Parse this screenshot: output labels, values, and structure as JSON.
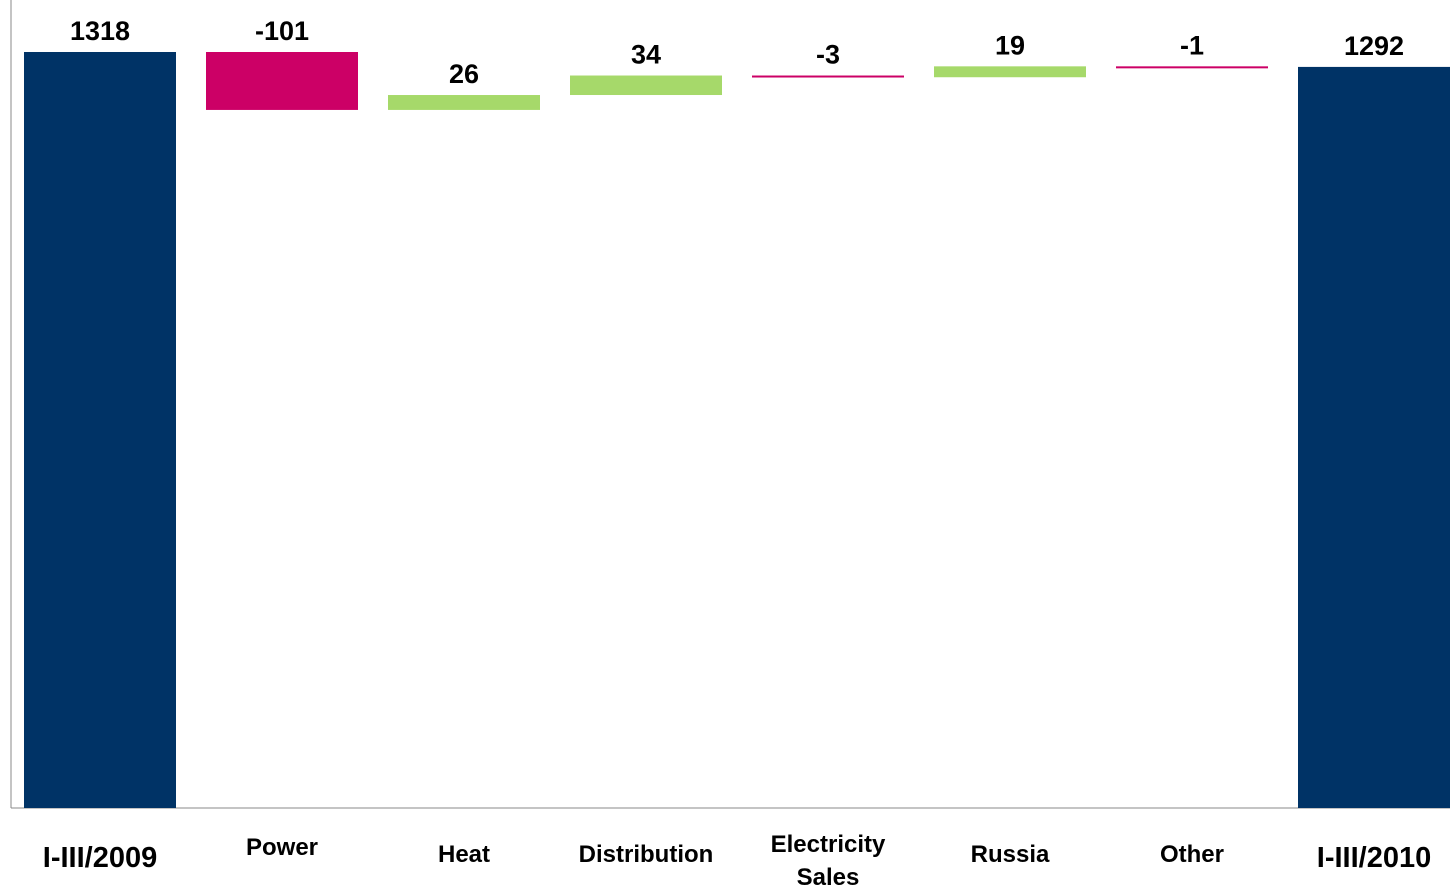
{
  "chart_data": {
    "type": "bar",
    "subtype": "waterfall",
    "title": "",
    "xlabel": "",
    "ylabel": "",
    "categories": [
      "I-III/2009",
      "Power",
      "Heat",
      "Distribution",
      "Electricity Sales",
      "Russia",
      "Other",
      "I-III/2010"
    ],
    "values": [
      1318,
      -101,
      26,
      34,
      -3,
      19,
      -1,
      1292
    ],
    "kinds": [
      "total",
      "delta",
      "delta",
      "delta",
      "delta",
      "delta",
      "delta",
      "total"
    ],
    "value_labels": [
      "1318",
      "-101",
      "26",
      "34",
      "-3",
      "19",
      "-1",
      "1292"
    ],
    "ylim": [
      0,
      1318
    ],
    "grid": false,
    "legend": "none",
    "colors": {
      "total": "#003366",
      "increase": "#a6d96a",
      "decrease": "#cc0066"
    }
  }
}
